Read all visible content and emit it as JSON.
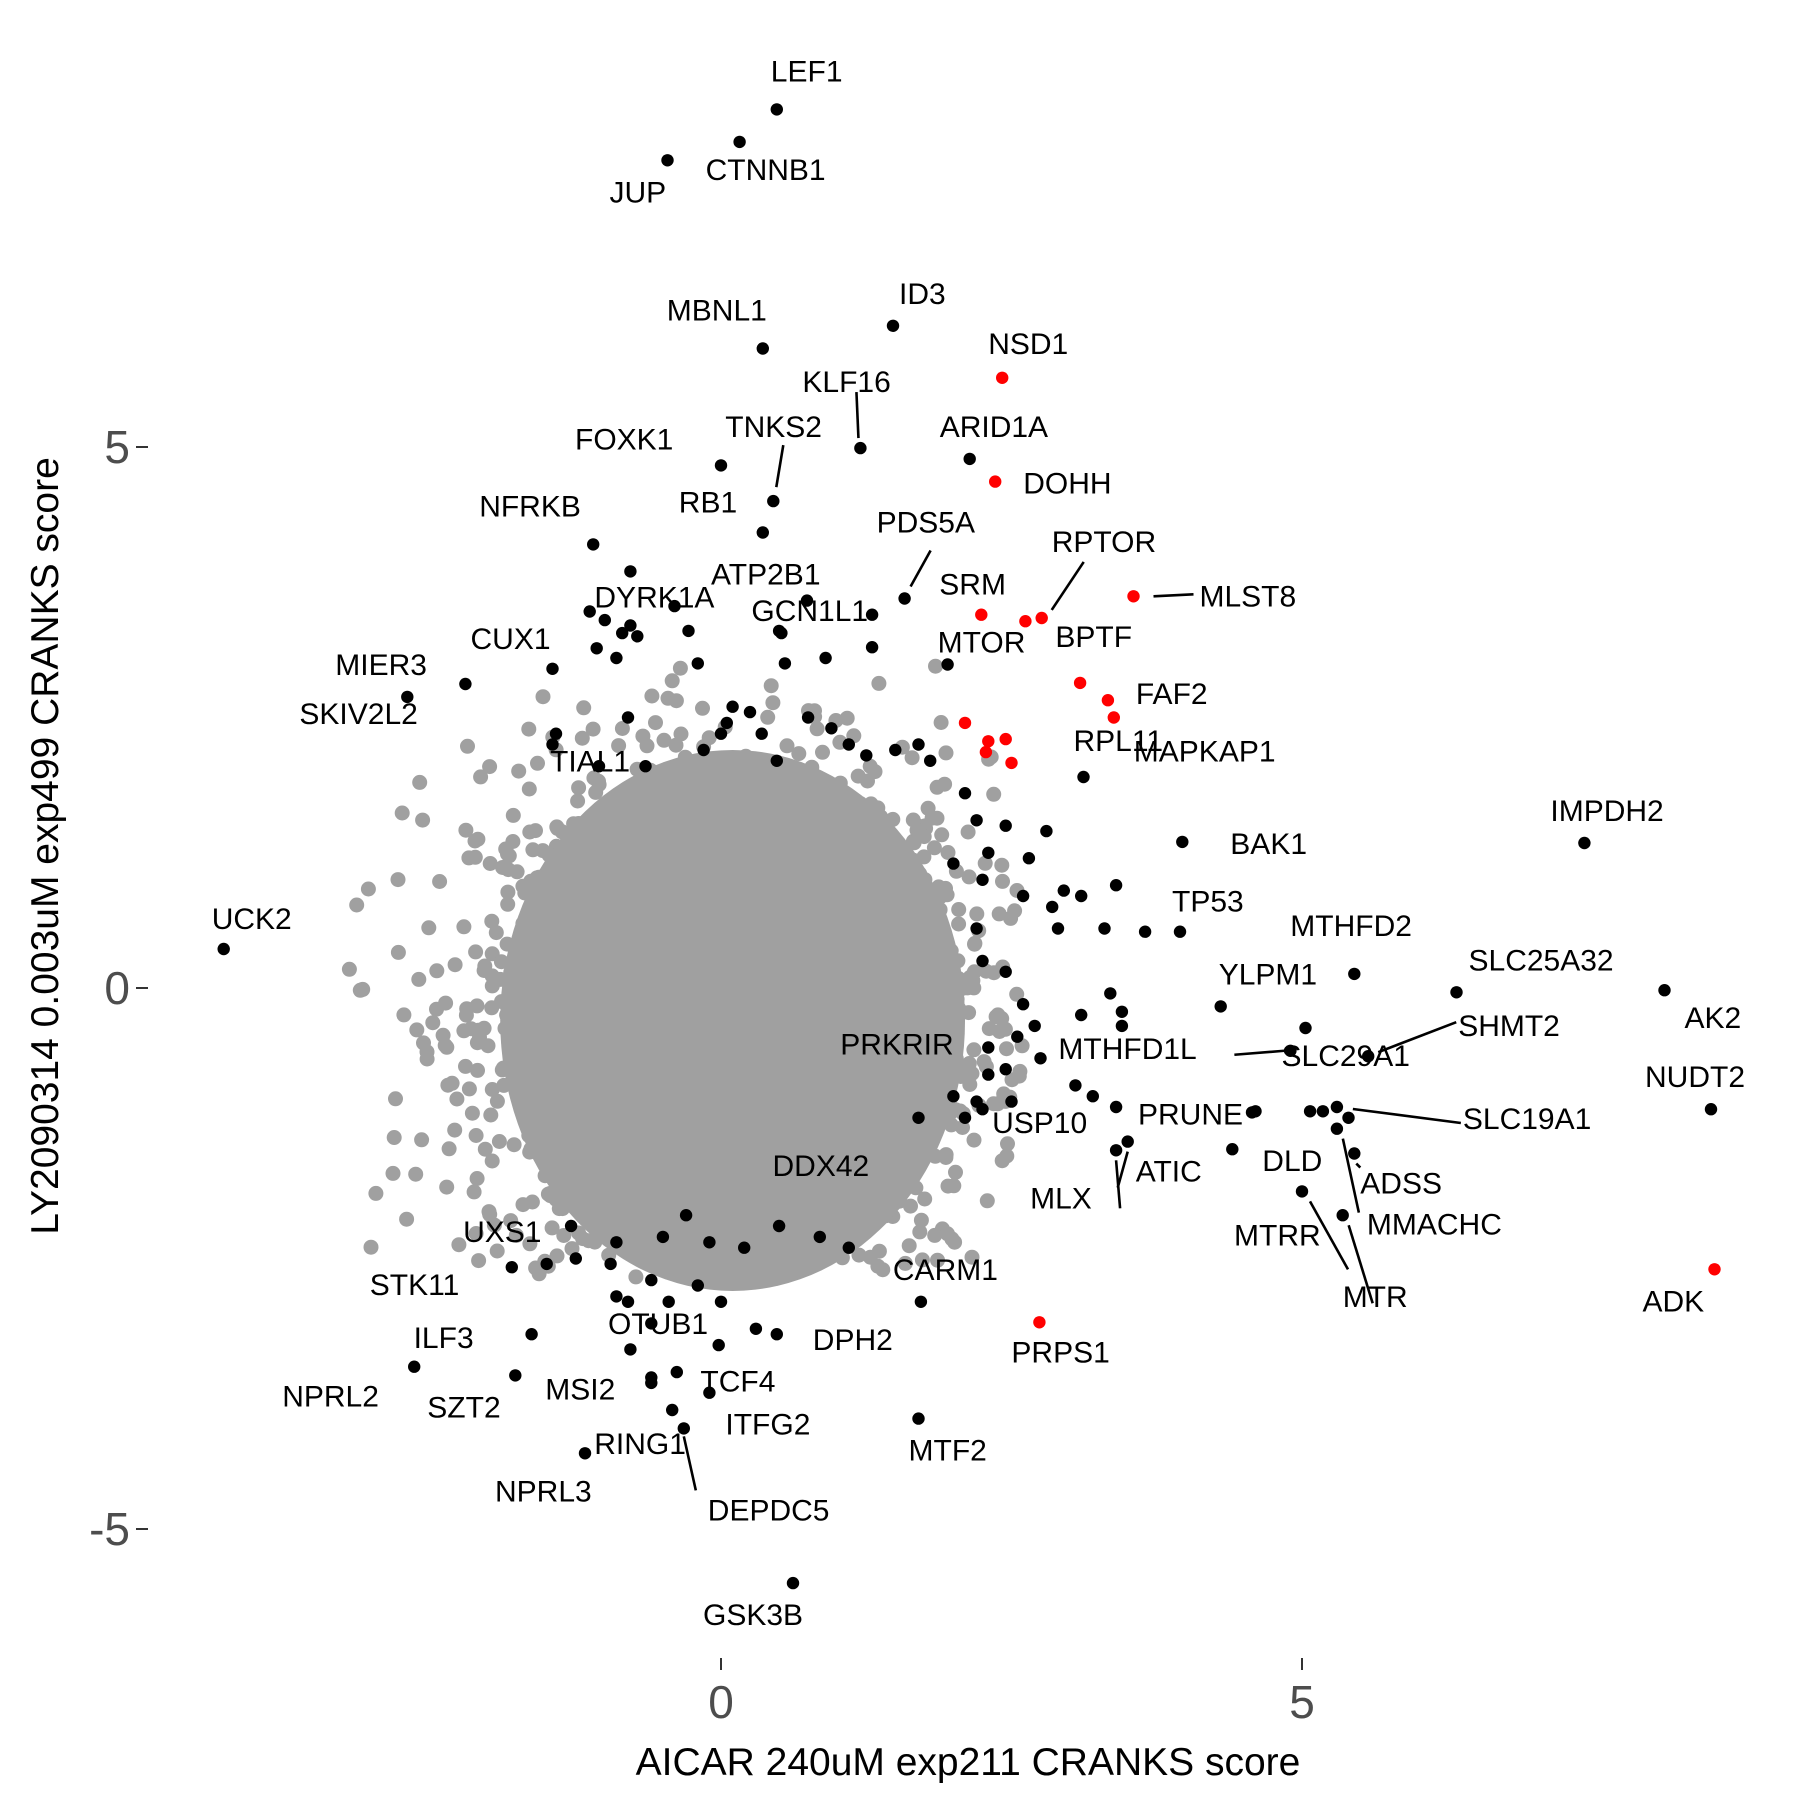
{
  "chart_data": {
    "type": "scatter",
    "xlabel": "AICAR 240uM exp211 CRANKS score",
    "ylabel": "LY2090314 0.003uM exp499 CRANKS score",
    "xlim": [
      -4.4,
      9.2
    ],
    "ylim": [
      -6.2,
      8.6
    ],
    "x_ticks": [
      0,
      5
    ],
    "y_ticks": [
      -5,
      0,
      5
    ],
    "grid": false,
    "legend": "none",
    "colors": {
      "background": "#a0a0a0",
      "hit": "#000000",
      "highlight": "#ff0000"
    },
    "background_cloud": {
      "color": "#a0a0a0",
      "center_x": 0.1,
      "center_y": -0.3,
      "sd_x": 1.1,
      "sd_y": 1.2,
      "count": 2600
    },
    "series": [
      {
        "color": "#000000",
        "points": [
          {
            "label": "LEF1",
            "x": 0.48,
            "y": 8.12
          },
          {
            "label": "CTNNB1",
            "x": 0.16,
            "y": 7.82
          },
          {
            "label": "JUP",
            "x": -0.46,
            "y": 7.65
          },
          {
            "label": "ID3",
            "x": 1.48,
            "y": 6.12
          },
          {
            "label": "MBNL1",
            "x": 0.36,
            "y": 5.91
          },
          {
            "label": "KLF16",
            "x": 1.2,
            "y": 4.99
          },
          {
            "label": "ARID1A",
            "x": 2.14,
            "y": 4.89
          },
          {
            "label": "FOXK1",
            "x": 0.0,
            "y": 4.83
          },
          {
            "label": "TNKS2",
            "x": 0.45,
            "y": 4.5
          },
          {
            "label": "RB1",
            "x": 0.36,
            "y": 4.21
          },
          {
            "label": "NFRKB",
            "x": -1.1,
            "y": 4.1
          },
          {
            "label": "DYRK1A",
            "x": -0.78,
            "y": 3.85
          },
          {
            "label": "PDS5A",
            "x": 1.58,
            "y": 3.6
          },
          {
            "label": "ATP2B1",
            "x": 0.74,
            "y": 3.58
          },
          {
            "label": "GCN1L1",
            "x": 0.52,
            "y": 3.28
          },
          {
            "label": "MTOR",
            "x": 1.95,
            "y": 2.99
          },
          {
            "label": "CUX1",
            "x": -1.45,
            "y": 2.95
          },
          {
            "label": "MIER3",
            "x": -2.7,
            "y": 2.69
          },
          {
            "label": "SKIV2L2",
            "x": -2.2,
            "y": 2.81
          },
          {
            "label": "TIAL1",
            "x": -1.42,
            "y": 2.35
          },
          {
            "label": "RPL11",
            "x": 3.12,
            "y": 1.95
          },
          {
            "label": "BAK1",
            "x": 3.97,
            "y": 1.35
          },
          {
            "label": "IMPDH2",
            "x": 7.43,
            "y": 1.34
          },
          {
            "label": "UCK2",
            "x": -4.28,
            "y": 0.36
          },
          {
            "label": "TP53",
            "x": 3.95,
            "y": 0.52
          },
          {
            "label": "MTHFD2",
            "x": 5.45,
            "y": 0.13
          },
          {
            "label": "SLC25A32",
            "x": 6.33,
            "y": -0.04
          },
          {
            "label": "AK2",
            "x": 8.12,
            "y": -0.02
          },
          {
            "label": "YLPM1",
            "x": 4.3,
            "y": -0.17
          },
          {
            "label": "SHMT2",
            "x": 5.57,
            "y": -0.63
          },
          {
            "label": "MTHFD1L",
            "x": 4.9,
            "y": -0.58
          },
          {
            "label": "SLC29A1",
            "x": 5.03,
            "y": -0.37
          },
          {
            "label": "NUDT2",
            "x": 8.52,
            "y": -1.12
          },
          {
            "label": "PRUNE",
            "x": 4.57,
            "y": -1.15
          },
          {
            "label": "SLC19A1",
            "x": 5.3,
            "y": -1.1
          },
          {
            "label": "PRKRIR",
            "x": 2.3,
            "y": -0.8
          },
          {
            "label": "USP10",
            "x": 3.4,
            "y": -1.1
          },
          {
            "label": "ATIC",
            "x": 3.5,
            "y": -1.42
          },
          {
            "label": "MLX",
            "x": 3.4,
            "y": -1.5
          },
          {
            "label": "DLD",
            "x": 4.4,
            "y": -1.49
          },
          {
            "label": "ADSS",
            "x": 5.45,
            "y": -1.53
          },
          {
            "label": "DDX42",
            "x": 1.7,
            "y": -1.2
          },
          {
            "label": "MTRR",
            "x": 5.0,
            "y": -1.88
          },
          {
            "label": "MMACHC",
            "x": 5.3,
            "y": -1.3
          },
          {
            "label": "MTR",
            "x": 5.35,
            "y": -2.1
          },
          {
            "label": "UXS1",
            "x": -1.29,
            "y": -2.2
          },
          {
            "label": "STK11",
            "x": -1.8,
            "y": -2.58
          },
          {
            "label": "OTUB1",
            "x": -0.8,
            "y": -2.9
          },
          {
            "label": "CARM1",
            "x": 1.72,
            "y": -2.9
          },
          {
            "label": "ILF3",
            "x": -1.63,
            "y": -3.2
          },
          {
            "label": "DPH2",
            "x": 0.48,
            "y": -3.2
          },
          {
            "label": "TCF4",
            "x": -0.78,
            "y": -3.34
          },
          {
            "label": "NPRL2",
            "x": -2.64,
            "y": -3.5
          },
          {
            "label": "SZT2",
            "x": -1.77,
            "y": -3.58
          },
          {
            "label": "MSI2",
            "x": -0.6,
            "y": -3.6
          },
          {
            "label": "ITFG2",
            "x": -0.1,
            "y": -3.74
          },
          {
            "label": "MTF2",
            "x": 1.7,
            "y": -3.98
          },
          {
            "label": "RING1",
            "x": -0.42,
            "y": -3.9
          },
          {
            "label": "DEPDC5",
            "x": -0.32,
            "y": -4.07
          },
          {
            "label": "NPRL3",
            "x": -1.17,
            "y": -4.3
          },
          {
            "label": "GSK3B",
            "x": 0.62,
            "y": -5.5
          }
        ],
        "unlabeled": [
          [
            -1.13,
            3.48
          ],
          [
            -1.07,
            3.14
          ],
          [
            -1.0,
            3.4
          ],
          [
            -0.78,
            3.35
          ],
          [
            -0.72,
            3.25
          ],
          [
            -0.4,
            3.53
          ],
          [
            -0.28,
            3.3
          ],
          [
            -0.2,
            3.0
          ],
          [
            -0.85,
            3.28
          ],
          [
            -0.9,
            3.05
          ],
          [
            0.5,
            3.3
          ],
          [
            0.55,
            3.0
          ],
          [
            0.9,
            3.05
          ],
          [
            1.3,
            3.45
          ],
          [
            1.3,
            3.15
          ],
          [
            0.1,
            2.6
          ],
          [
            0.05,
            2.45
          ],
          [
            0.25,
            2.55
          ],
          [
            0.35,
            2.35
          ],
          [
            0.48,
            2.1
          ],
          [
            0.75,
            2.5
          ],
          [
            0.95,
            2.4
          ],
          [
            1.1,
            2.25
          ],
          [
            1.25,
            2.15
          ],
          [
            1.5,
            2.2
          ],
          [
            1.7,
            2.25
          ],
          [
            1.8,
            2.1
          ],
          [
            -0.8,
            2.5
          ],
          [
            -1.05,
            2.05
          ],
          [
            -1.45,
            2.25
          ],
          [
            -0.65,
            2.05
          ],
          [
            -0.15,
            2.2
          ],
          [
            0.0,
            2.35
          ],
          [
            2.1,
            1.8
          ],
          [
            2.2,
            1.55
          ],
          [
            2.45,
            1.5
          ],
          [
            2.3,
            1.25
          ],
          [
            2.0,
            1.15
          ],
          [
            2.8,
            1.45
          ],
          [
            2.65,
            1.2
          ],
          [
            2.25,
            1.0
          ],
          [
            2.6,
            0.85
          ],
          [
            2.85,
            0.75
          ],
          [
            2.95,
            0.9
          ],
          [
            3.1,
            0.85
          ],
          [
            2.9,
            0.55
          ],
          [
            3.3,
            0.55
          ],
          [
            3.4,
            0.95
          ],
          [
            3.65,
            0.52
          ],
          [
            2.2,
            0.55
          ],
          [
            2.25,
            0.25
          ],
          [
            2.45,
            0.15
          ],
          [
            2.6,
            -0.15
          ],
          [
            2.7,
            -0.35
          ],
          [
            2.55,
            -0.45
          ],
          [
            2.3,
            -0.55
          ],
          [
            2.45,
            -0.75
          ],
          [
            2.75,
            -0.65
          ],
          [
            3.1,
            -0.25
          ],
          [
            3.35,
            -0.05
          ],
          [
            3.45,
            -0.22
          ],
          [
            3.45,
            -0.35
          ],
          [
            3.05,
            -0.9
          ],
          [
            2.5,
            -1.05
          ],
          [
            2.2,
            -1.05
          ],
          [
            2.1,
            -1.2
          ],
          [
            2.25,
            -1.12
          ],
          [
            2.0,
            -1.0
          ],
          [
            3.2,
            -1.0
          ],
          [
            4.6,
            -1.14
          ],
          [
            5.07,
            -1.14
          ],
          [
            5.18,
            -1.14
          ],
          [
            5.4,
            -1.2
          ],
          [
            -0.9,
            -2.35
          ],
          [
            -0.5,
            -2.3
          ],
          [
            -0.3,
            -2.1
          ],
          [
            -0.1,
            -2.35
          ],
          [
            0.2,
            -2.4
          ],
          [
            0.5,
            -2.2
          ],
          [
            0.85,
            -2.3
          ],
          [
            1.1,
            -2.4
          ],
          [
            -1.25,
            -2.5
          ],
          [
            -1.5,
            -2.55
          ],
          [
            -0.6,
            -2.7
          ],
          [
            -0.2,
            -2.75
          ],
          [
            0.0,
            -2.9
          ],
          [
            0.3,
            -3.15
          ],
          [
            -0.6,
            -3.1
          ],
          [
            -0.45,
            -2.9
          ],
          [
            -0.9,
            -2.85
          ],
          [
            -0.38,
            -3.55
          ],
          [
            -0.95,
            -2.55
          ],
          [
            -0.02,
            -3.3
          ],
          [
            -0.6,
            -3.65
          ]
        ]
      },
      {
        "color": "#ff0000",
        "points": [
          {
            "label": "NSD1",
            "x": 2.42,
            "y": 5.64
          },
          {
            "label": "DOHH",
            "x": 2.36,
            "y": 4.68
          },
          {
            "label": "RPTOR",
            "x": 2.76,
            "y": 3.42
          },
          {
            "label": "SRM",
            "x": 2.24,
            "y": 3.45
          },
          {
            "label": "MLST8",
            "x": 3.55,
            "y": 3.62
          },
          {
            "label": "BPTF",
            "x": 2.62,
            "y": 3.39
          },
          {
            "label": "FAF2",
            "x": 3.33,
            "y": 2.66
          },
          {
            "label": "MAPKAP1",
            "x": 3.38,
            "y": 2.5
          },
          {
            "label": "PRPS1",
            "x": 2.74,
            "y": -3.09
          },
          {
            "label": "ADK",
            "x": 8.55,
            "y": -2.6
          }
        ],
        "unlabeled": [
          [
            3.09,
            2.82
          ],
          [
            2.1,
            2.45
          ],
          [
            2.3,
            2.28
          ],
          [
            2.45,
            2.3
          ],
          [
            2.5,
            2.08
          ],
          [
            2.28,
            2.18
          ]
        ]
      }
    ]
  },
  "label_offsets": {
    "LEF1": [
      -6,
      -28,
      "start"
    ],
    "CTNNB1": [
      -34,
      38,
      "start"
    ],
    "JUP": [
      -58,
      42,
      "start"
    ],
    "ID3": [
      6,
      -22,
      "start"
    ],
    "MBNL1": [
      -96,
      -28,
      "start"
    ],
    "KLF16": [
      -58,
      -56,
      "start"
    ],
    "ARID1A": [
      -30,
      -22,
      "start"
    ],
    "FOXK1": [
      -146,
      -16,
      "start"
    ],
    "TNKS2": [
      -48,
      -64,
      "start"
    ],
    "RB1": [
      -84,
      -20,
      "start"
    ],
    "NFRKB": [
      -114,
      -28,
      "start"
    ],
    "DYRK1A": [
      -36,
      36,
      "start"
    ],
    "PDS5A": [
      -28,
      -66,
      "start"
    ],
    "ATP2B1": [
      -96,
      -16,
      "start"
    ],
    "GCN1L1": [
      -30,
      -12,
      "start"
    ],
    "MTOR": [
      -10,
      -12,
      "start"
    ],
    "CUX1": [
      -82,
      -20,
      "start"
    ],
    "MIER3": [
      -72,
      -22,
      "start"
    ],
    "SKIV2L2": [
      -166,
      40,
      "start"
    ],
    "TIAL1": [
      -6,
      38,
      "start"
    ],
    "RPL11": [
      -10,
      -26,
      "start"
    ],
    "BAK1": [
      48,
      12,
      "start"
    ],
    "IMPDH2": [
      -34,
      -22,
      "start"
    ],
    "UCK2": [
      -12,
      -20,
      "start"
    ],
    "TP53": [
      -8,
      -20,
      "start"
    ],
    "MTHFD2": [
      -64,
      -38,
      "start"
    ],
    "SLC25A32": [
      12,
      -22,
      "start"
    ],
    "AK2": [
      20,
      38,
      "start"
    ],
    "YLPM1": [
      -2,
      -22,
      "start"
    ],
    "SHMT2": [
      90,
      -20,
      "start"
    ],
    "MTHFD1L": [
      -232,
      8,
      "start"
    ],
    "SLC29A1": [
      -24,
      38,
      "start"
    ],
    "NUDT2": [
      -66,
      -22,
      "start"
    ],
    "PRUNE": [
      -114,
      12,
      "start"
    ],
    "SLC19A1": [
      126,
      22,
      "start"
    ],
    "PRKRIR": [
      -148,
      -20,
      "start"
    ],
    "USP10": [
      -124,
      26,
      "start"
    ],
    "ATIC": [
      8,
      40,
      "start"
    ],
    "MLX": [
      -86,
      58,
      "start"
    ],
    "DLD": [
      30,
      22,
      "start"
    ],
    "ADSS": [
      6,
      40,
      "start"
    ],
    "DDX42": [
      -146,
      58,
      "start"
    ],
    "MTRR": [
      -68,
      54,
      "start"
    ],
    "MMACHC": [
      30,
      106,
      "start"
    ],
    "MTR": [
      0,
      92,
      "start"
    ],
    "UXS1": [
      -108,
      16,
      "start"
    ],
    "STK11": [
      -142,
      28,
      "start"
    ],
    "OTUB1": [
      -20,
      32,
      "start"
    ],
    "CARM1": [
      -28,
      -22,
      "start"
    ],
    "ILF3": [
      -118,
      14,
      "start"
    ],
    "DPH2": [
      36,
      16,
      "start"
    ],
    "TCF4": [
      70,
      42,
      "start"
    ],
    "NPRL2": [
      -132,
      40,
      "start"
    ],
    "SZT2": [
      -88,
      42,
      "start"
    ],
    "MSI2": [
      -106,
      22,
      "start"
    ],
    "ITFG2": [
      16,
      42,
      "start"
    ],
    "MTF2": [
      -10,
      42,
      "start"
    ],
    "RING1": [
      -78,
      44,
      "start"
    ],
    "DEPDC5": [
      24,
      92,
      "start"
    ],
    "NPRL3": [
      -90,
      48,
      "start"
    ],
    "GSK3B": [
      -90,
      42,
      "start"
    ],
    "NSD1": [
      -14,
      -24,
      "start"
    ],
    "DOHH": [
      28,
      12,
      "start"
    ],
    "RPTOR": [
      10,
      -66,
      "start"
    ],
    "SRM": [
      -42,
      -20,
      "start"
    ],
    "MLST8": [
      66,
      10,
      "start"
    ],
    "BPTF": [
      30,
      26,
      "start"
    ],
    "FAF2": [
      28,
      4,
      "start"
    ],
    "MAPKAP1": [
      20,
      44,
      "start"
    ],
    "PRPS1": [
      -28,
      40,
      "start"
    ],
    "ADK": [
      -72,
      42,
      "start"
    ]
  },
  "leaders": {
    "KLF16": [
      [
        -2,
        -10
      ],
      [
        -4,
        -56
      ]
    ],
    "TNKS2": [
      [
        3,
        -14
      ],
      [
        10,
        -56
      ]
    ],
    "PDS5A": [
      [
        6,
        -12
      ],
      [
        26,
        -48
      ]
    ],
    "RPTOR": [
      [
        10,
        -8
      ],
      [
        42,
        -56
      ]
    ],
    "MLST8": [
      [
        20,
        0
      ],
      [
        60,
        -2
      ]
    ],
    "MTHFD1L": [
      [
        -6,
        0
      ],
      [
        -56,
        4
      ]
    ],
    "SHMT2": [
      [
        10,
        -4
      ],
      [
        88,
        -34
      ]
    ],
    "SLC19A1": [
      [
        16,
        2
      ],
      [
        124,
        16
      ]
    ],
    "ATIC": [
      [
        0,
        10
      ],
      [
        -10,
        46
      ]
    ],
    "MLX": [
      [
        0,
        10
      ],
      [
        4,
        58
      ]
    ],
    "MTRR": [
      [
        8,
        10
      ],
      [
        46,
        78
      ]
    ],
    "MMACHC": [
      [
        6,
        10
      ],
      [
        22,
        84
      ]
    ],
    "MTR": [
      [
        6,
        10
      ],
      [
        30,
        88
      ]
    ],
    "DEPDC5": [
      [
        0,
        8
      ],
      [
        12,
        62
      ]
    ],
    "ADSS": [
      [
        2,
        10
      ],
      [
        6,
        14
      ]
    ]
  }
}
